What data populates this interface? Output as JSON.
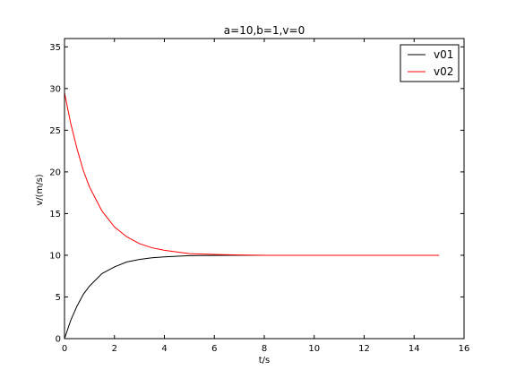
{
  "chart_data": {
    "type": "line",
    "title": "a=10,b=1,v=0",
    "xlabel": "t/s",
    "ylabel": "v/(m/s)",
    "xlim": [
      0,
      16
    ],
    "ylim": [
      0,
      36
    ],
    "xticks": [
      0,
      2,
      4,
      6,
      8,
      10,
      12,
      14,
      16
    ],
    "yticks": [
      0,
      5,
      10,
      15,
      20,
      25,
      30,
      35
    ],
    "grid": false,
    "legend_position": "top-right",
    "series": [
      {
        "name": "v01",
        "color": "#000000",
        "x": [
          0,
          0.25,
          0.5,
          0.75,
          1,
          1.5,
          2,
          2.5,
          3,
          3.5,
          4,
          5,
          6,
          7,
          8,
          9,
          10,
          11,
          12,
          13,
          14,
          15
        ],
        "y": [
          0,
          2.2,
          3.9,
          5.3,
          6.3,
          7.8,
          8.6,
          9.2,
          9.5,
          9.7,
          9.8,
          9.95,
          9.98,
          10,
          10,
          10,
          10,
          10,
          10,
          10,
          10,
          10
        ]
      },
      {
        "name": "v02",
        "color": "#ff0000",
        "x": [
          0,
          0.25,
          0.5,
          0.75,
          1,
          1.5,
          2,
          2.5,
          3,
          3.5,
          4,
          5,
          6,
          7,
          8,
          9,
          10,
          11,
          12,
          13,
          14,
          15
        ],
        "y": [
          29.5,
          25.8,
          22.8,
          20.2,
          18.2,
          15.3,
          13.4,
          12.2,
          11.4,
          10.9,
          10.6,
          10.2,
          10.1,
          10.03,
          10,
          10,
          10,
          10,
          10,
          10,
          10,
          10
        ]
      }
    ]
  }
}
